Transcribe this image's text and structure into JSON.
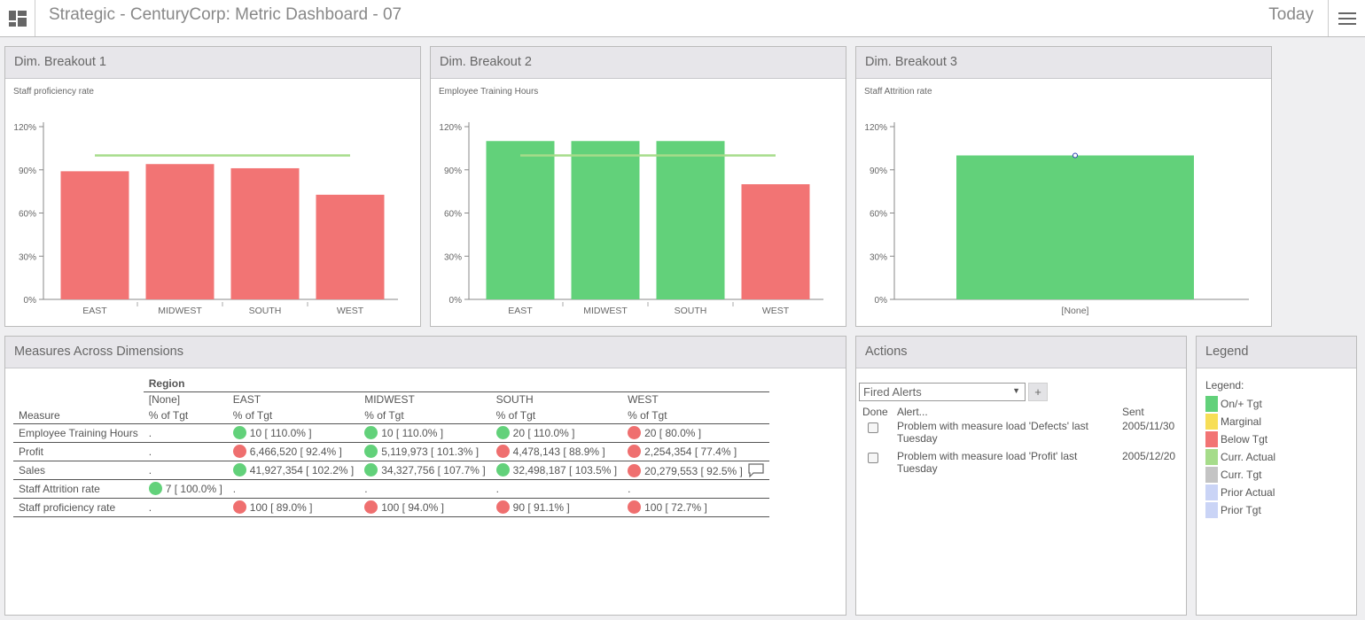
{
  "header": {
    "title": "Strategic - CenturyCorp: Metric Dashboard - 07",
    "date_label": "Today"
  },
  "panels": {
    "breakout1": "Dim. Breakout 1",
    "breakout2": "Dim. Breakout 2",
    "breakout3": "Dim. Breakout 3",
    "measures": "Measures Across Dimensions",
    "actions": "Actions",
    "legend": "Legend"
  },
  "colors": {
    "on_tgt": "#62d17a",
    "marginal": "#f7de57",
    "below_tgt": "#f27474",
    "curr_actual": "#a6dc8a",
    "curr_tgt": "#c4c4c4",
    "prior_actual": "#cad4f6",
    "prior_tgt": "#cad4f6"
  },
  "chart_data": [
    {
      "type": "bar",
      "subtitle": "Staff proficiency rate",
      "categories": [
        "EAST",
        "MIDWEST",
        "SOUTH",
        "WEST"
      ],
      "values": [
        89.0,
        94.0,
        91.1,
        72.7
      ],
      "statuses": [
        "below",
        "below",
        "below",
        "below"
      ],
      "target": 100,
      "yticks": [
        "120%",
        "90%",
        "60%",
        "30%",
        "0%"
      ],
      "ylim": [
        0,
        120
      ]
    },
    {
      "type": "bar",
      "subtitle": "Employee Training Hours",
      "categories": [
        "EAST",
        "MIDWEST",
        "SOUTH",
        "WEST"
      ],
      "values": [
        110.0,
        110.0,
        110.0,
        80.0
      ],
      "statuses": [
        "on",
        "on",
        "on",
        "below"
      ],
      "target": 100,
      "yticks": [
        "120%",
        "90%",
        "60%",
        "30%",
        "0%"
      ],
      "ylim": [
        0,
        120
      ]
    },
    {
      "type": "bar",
      "subtitle": "Staff Attrition rate",
      "categories": [
        "[None]"
      ],
      "values": [
        100.0
      ],
      "statuses": [
        "on"
      ],
      "target_point": 100,
      "yticks": [
        "120%",
        "90%",
        "60%",
        "30%",
        "0%"
      ],
      "ylim": [
        0,
        120
      ]
    }
  ],
  "measures_table": {
    "region_label": "Region",
    "measure_header": "Measure",
    "columns": [
      "[None]",
      "EAST",
      "MIDWEST",
      "SOUTH",
      "WEST"
    ],
    "sub_header": "% of Tgt",
    "rows": [
      {
        "measure": "Employee Training Hours",
        "cells": [
          {
            "text": ".",
            "status": ""
          },
          {
            "text": "10 [ 110.0% ]",
            "status": "g"
          },
          {
            "text": "10 [ 110.0% ]",
            "status": "g"
          },
          {
            "text": "20 [ 110.0% ]",
            "status": "g"
          },
          {
            "text": "20 [ 80.0% ]",
            "status": "r"
          }
        ],
        "comment": false
      },
      {
        "measure": "Profit",
        "cells": [
          {
            "text": ".",
            "status": ""
          },
          {
            "text": "6,466,520 [ 92.4% ]",
            "status": "r"
          },
          {
            "text": "5,119,973 [ 101.3% ]",
            "status": "g"
          },
          {
            "text": "4,478,143 [ 88.9% ]",
            "status": "r"
          },
          {
            "text": "2,254,354 [ 77.4% ]",
            "status": "r"
          }
        ],
        "comment": false
      },
      {
        "measure": "Sales",
        "cells": [
          {
            "text": ".",
            "status": ""
          },
          {
            "text": "41,927,354 [ 102.2% ]",
            "status": "g"
          },
          {
            "text": "34,327,756 [ 107.7% ]",
            "status": "g"
          },
          {
            "text": "32,498,187 [ 103.5% ]",
            "status": "g"
          },
          {
            "text": "20,279,553 [ 92.5% ]",
            "status": "r"
          }
        ],
        "comment": true
      },
      {
        "measure": "Staff Attrition rate",
        "cells": [
          {
            "text": "7 [ 100.0% ]",
            "status": "g"
          },
          {
            "text": ".",
            "status": ""
          },
          {
            "text": ".",
            "status": ""
          },
          {
            "text": ".",
            "status": ""
          },
          {
            "text": ".",
            "status": ""
          }
        ],
        "comment": false
      },
      {
        "measure": "Staff proficiency rate",
        "cells": [
          {
            "text": ".",
            "status": ""
          },
          {
            "text": "100 [ 89.0% ]",
            "status": "r"
          },
          {
            "text": "100 [ 94.0% ]",
            "status": "r"
          },
          {
            "text": "90 [ 91.1% ]",
            "status": "r"
          },
          {
            "text": "100 [ 72.7% ]",
            "status": "r"
          }
        ],
        "comment": false
      }
    ]
  },
  "actions": {
    "selected": "Fired Alerts",
    "add_label": "+",
    "headers": {
      "done": "Done",
      "alert": "Alert...",
      "sent": "Sent"
    },
    "alerts": [
      {
        "text": "Problem with measure load 'Defects' last Tuesday",
        "sent": "2005/11/30"
      },
      {
        "text": "Problem with measure load 'Profit' last Tuesday",
        "sent": "2005/12/20"
      }
    ]
  },
  "legend": {
    "title": "Legend:",
    "items": [
      {
        "label": "On/+ Tgt",
        "color": "#62d17a"
      },
      {
        "label": "Marginal",
        "color": "#f7de57"
      },
      {
        "label": "Below Tgt",
        "color": "#f27474"
      },
      {
        "label": "Curr. Actual",
        "color": "#a6dc8a"
      },
      {
        "label": "Curr. Tgt",
        "color": "#c4c4c4"
      },
      {
        "label": "Prior Actual",
        "color": "#cad4f6"
      },
      {
        "label": "Prior Tgt",
        "color": "#cad4f6"
      }
    ]
  }
}
